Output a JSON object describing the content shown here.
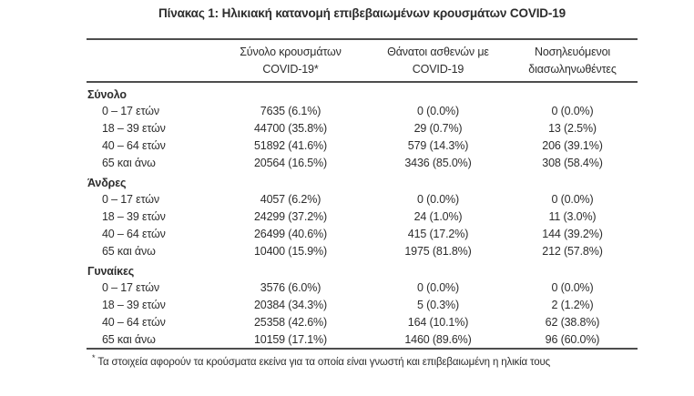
{
  "page": {
    "title": "Πίνακας 1: Ηλικιακή κατανομή επιβεβαιωμένων κρουσμάτων COVID-19"
  },
  "colors": {
    "text": "#2d2d2d",
    "rule": "#4d4d4d",
    "background": "#ffffff"
  },
  "table": {
    "columns": [
      {
        "line1": "Σύνολο κρουσμάτων",
        "line2": "COVID-19*"
      },
      {
        "line1": "Θάνατοι ασθενών με",
        "line2": "COVID-19"
      },
      {
        "line1": "Νοσηλευόμενοι",
        "line2": "διασωληνωθέντες"
      }
    ],
    "sections": [
      {
        "title": "Σύνολο",
        "rows": [
          {
            "label": "0 – 17 ετών",
            "cases": "7635 (6.1%)",
            "deaths": "0 (0.0%)",
            "intubated": "0 (0.0%)"
          },
          {
            "label": "18 – 39 ετών",
            "cases": "44700 (35.8%)",
            "deaths": "29 (0.7%)",
            "intubated": "13 (2.5%)"
          },
          {
            "label": "40 – 64 ετών",
            "cases": "51892 (41.6%)",
            "deaths": "579 (14.3%)",
            "intubated": "206 (39.1%)"
          },
          {
            "label": "65 και άνω",
            "cases": "20564 (16.5%)",
            "deaths": "3436 (85.0%)",
            "intubated": "308 (58.4%)"
          }
        ]
      },
      {
        "title": "Άνδρες",
        "rows": [
          {
            "label": "0 – 17 ετών",
            "cases": "4057 (6.2%)",
            "deaths": "0 (0.0%)",
            "intubated": "0 (0.0%)"
          },
          {
            "label": "18 – 39 ετών",
            "cases": "24299 (37.2%)",
            "deaths": "24 (1.0%)",
            "intubated": "11 (3.0%)"
          },
          {
            "label": "40 – 64 ετών",
            "cases": "26499 (40.6%)",
            "deaths": "415 (17.2%)",
            "intubated": "144 (39.2%)"
          },
          {
            "label": "65 και άνω",
            "cases": "10400 (15.9%)",
            "deaths": "1975 (81.8%)",
            "intubated": "212 (57.8%)"
          }
        ]
      },
      {
        "title": "Γυναίκες",
        "rows": [
          {
            "label": "0 – 17 ετών",
            "cases": "3576 (6.0%)",
            "deaths": "0 (0.0%)",
            "intubated": "0 (0.0%)"
          },
          {
            "label": "18 – 39 ετών",
            "cases": "20384 (34.3%)",
            "deaths": "5 (0.3%)",
            "intubated": "2 (1.2%)"
          },
          {
            "label": "40 – 64 ετών",
            "cases": "25358 (42.6%)",
            "deaths": "164 (10.1%)",
            "intubated": "62 (38.8%)"
          },
          {
            "label": "65 και άνω",
            "cases": "10159 (17.1%)",
            "deaths": "1460 (89.6%)",
            "intubated": "96 (60.0%)"
          }
        ]
      }
    ],
    "footnote_marker": "*",
    "footnote": "Τα στοιχεία αφορούν τα κρούσματα εκείνα για τα οποία είναι γνωστή και επιβεβαιωμένη η ηλικία τους"
  }
}
